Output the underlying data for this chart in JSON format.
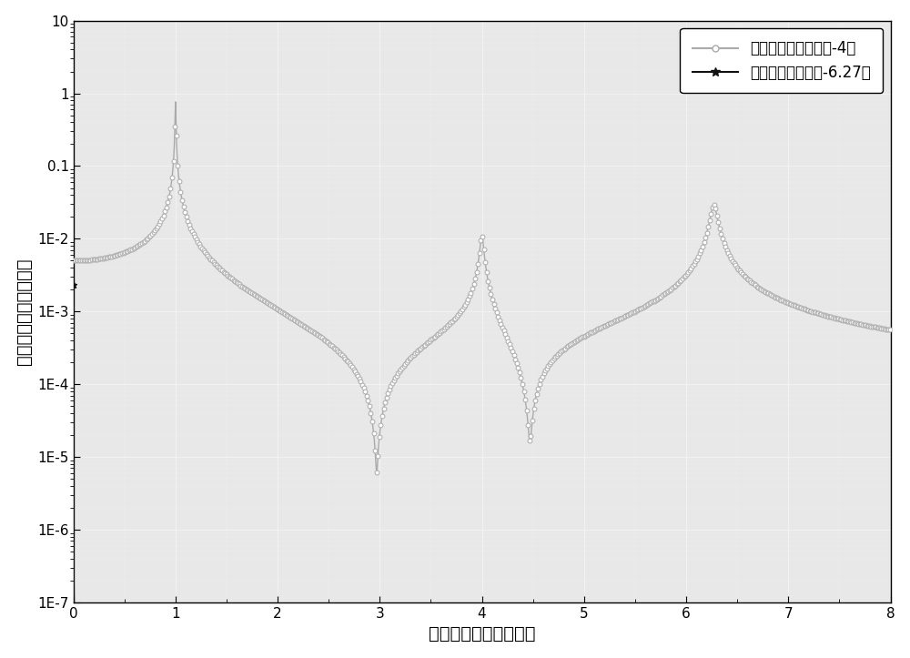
{
  "title": "",
  "xlabel": "归一化微悉臂振荡频率",
  "ylabel": "响应幅値（对数数値）",
  "xlim": [
    0,
    8
  ],
  "ylim_log": [
    1e-07,
    10
  ],
  "legend1": "高次谐振型硅微悉臂-4倍",
  "legend2": "常规矩形硅微悉臂-6.27倍",
  "line1_color": "#aaaaaa",
  "line2_color": "#111111",
  "background_color": "#e8e8e8",
  "fontsize_label": 14,
  "fontsize_legend": 12,
  "fontsize_tick": 11,
  "ytick_labels": [
    "1E-7",
    "1E-6",
    "1E-5",
    "1E-4",
    "1E-3",
    "1E-2",
    "0.1",
    "1",
    "10"
  ],
  "ytick_vals": [
    1e-07,
    1e-06,
    1e-05,
    0.0001,
    0.001,
    0.01,
    0.1,
    1,
    10
  ]
}
